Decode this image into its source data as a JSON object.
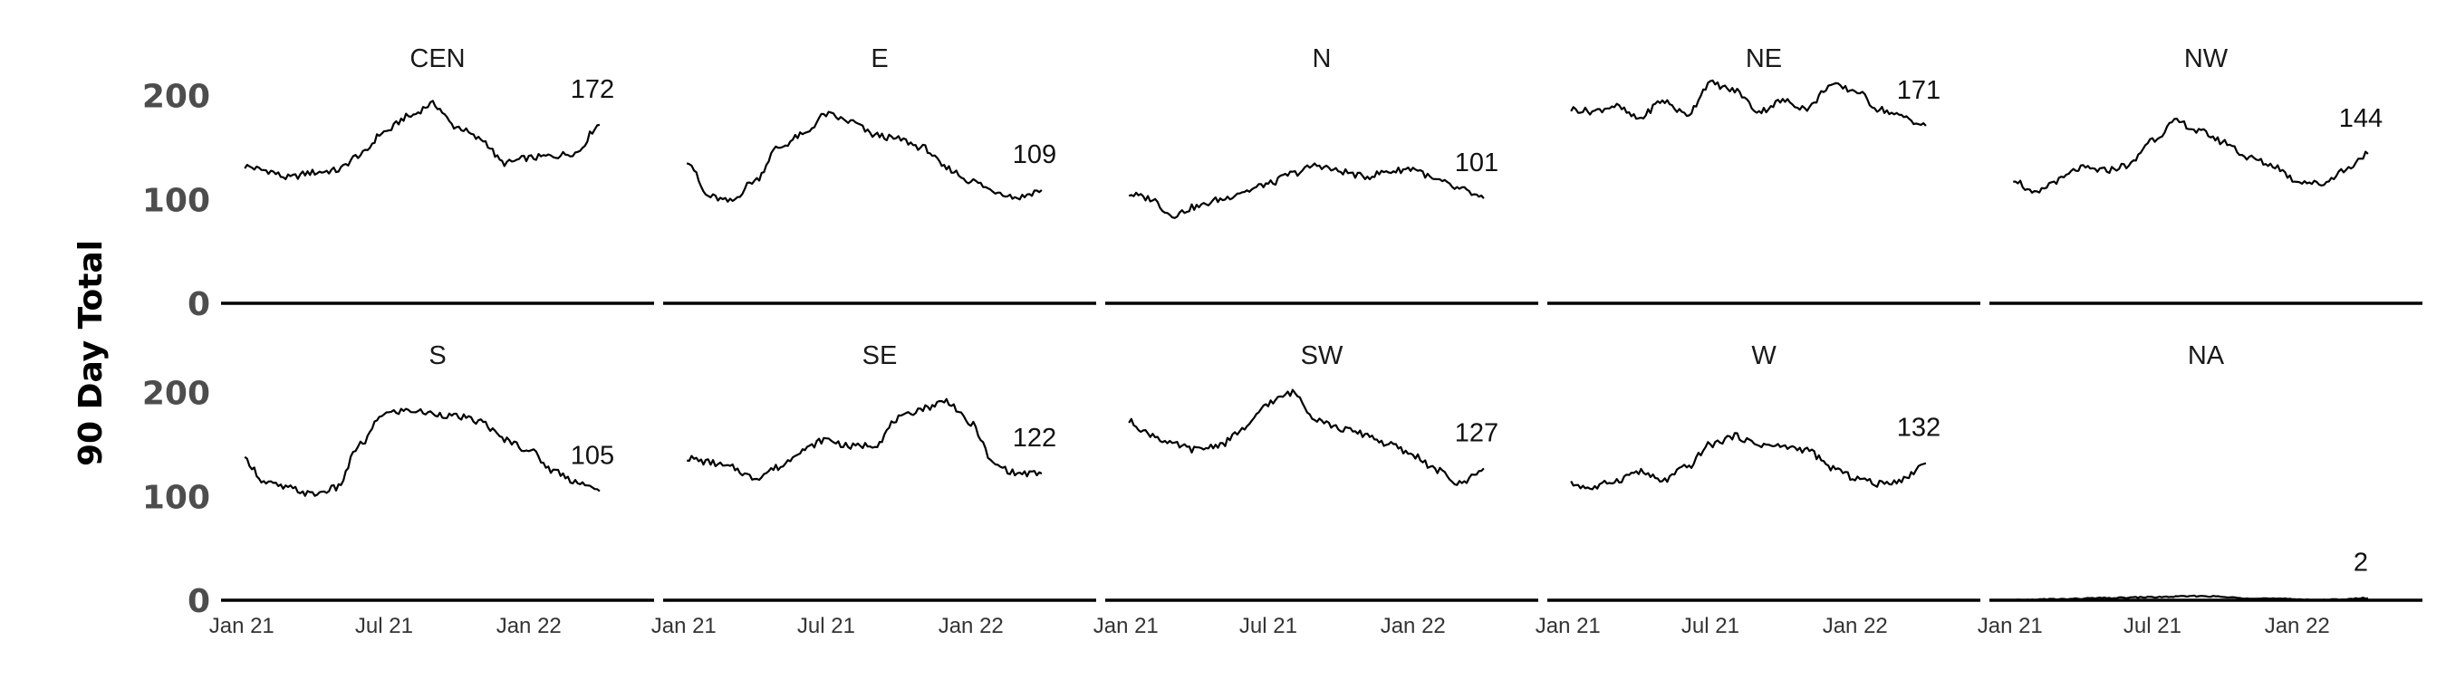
{
  "chart_data": {
    "type": "line",
    "ylabel": "90 Day Total",
    "ylim": [
      0,
      205
    ],
    "yticks": [
      "0",
      "100",
      "200"
    ],
    "y_tick_values": [
      0,
      100,
      200
    ],
    "xticks": [
      "Jan 21",
      "Jul 21",
      "Jan 22"
    ],
    "x_tick_dates": [
      "2021-01-01",
      "2021-07-01",
      "2022-01-01"
    ],
    "xlim": [
      "2020-12-15",
      "2022-05-31"
    ],
    "line_color": "#000000",
    "grid": false,
    "layout": "facet grid, 2 rows x 5 columns",
    "panels": [
      {
        "title": "CEN",
        "end_label": "172",
        "points": [
          [
            "2021-01-05",
            132
          ],
          [
            "2021-02-01",
            128
          ],
          [
            "2021-03-01",
            121
          ],
          [
            "2021-04-01",
            126
          ],
          [
            "2021-05-01",
            128
          ],
          [
            "2021-06-01",
            143
          ],
          [
            "2021-07-01",
            165
          ],
          [
            "2021-08-01",
            180
          ],
          [
            "2021-09-01",
            192
          ],
          [
            "2021-10-01",
            170
          ],
          [
            "2021-11-01",
            158
          ],
          [
            "2021-12-01",
            135
          ],
          [
            "2022-01-01",
            140
          ],
          [
            "2022-02-01",
            142
          ],
          [
            "2022-03-01",
            145
          ],
          [
            "2022-04-01",
            172
          ]
        ]
      },
      {
        "title": "E",
        "end_label": "109",
        "points": [
          [
            "2021-01-05",
            138
          ],
          [
            "2021-02-01",
            103
          ],
          [
            "2021-03-01",
            98
          ],
          [
            "2021-04-01",
            118
          ],
          [
            "2021-05-01",
            150
          ],
          [
            "2021-06-01",
            162
          ],
          [
            "2021-07-01",
            182
          ],
          [
            "2021-08-01",
            175
          ],
          [
            "2021-09-01",
            162
          ],
          [
            "2021-10-01",
            158
          ],
          [
            "2021-11-01",
            150
          ],
          [
            "2021-12-01",
            130
          ],
          [
            "2022-01-01",
            118
          ],
          [
            "2022-02-01",
            108
          ],
          [
            "2022-03-01",
            102
          ],
          [
            "2022-04-01",
            109
          ]
        ]
      },
      {
        "title": "N",
        "end_label": "101",
        "points": [
          [
            "2021-01-05",
            105
          ],
          [
            "2021-02-01",
            101
          ],
          [
            "2021-03-01",
            85
          ],
          [
            "2021-04-01",
            93
          ],
          [
            "2021-05-01",
            100
          ],
          [
            "2021-06-01",
            108
          ],
          [
            "2021-07-01",
            115
          ],
          [
            "2021-08-01",
            125
          ],
          [
            "2021-09-01",
            133
          ],
          [
            "2021-10-01",
            127
          ],
          [
            "2021-11-01",
            122
          ],
          [
            "2021-12-01",
            127
          ],
          [
            "2022-01-01",
            130
          ],
          [
            "2022-02-01",
            118
          ],
          [
            "2022-03-01",
            110
          ],
          [
            "2022-04-01",
            101
          ]
        ]
      },
      {
        "title": "NE",
        "end_label": "171",
        "points": [
          [
            "2021-01-05",
            187
          ],
          [
            "2021-02-01",
            185
          ],
          [
            "2021-03-01",
            190
          ],
          [
            "2021-04-01",
            178
          ],
          [
            "2021-05-01",
            195
          ],
          [
            "2021-06-01",
            182
          ],
          [
            "2021-07-01",
            212
          ],
          [
            "2021-08-01",
            205
          ],
          [
            "2021-09-01",
            185
          ],
          [
            "2021-10-01",
            195
          ],
          [
            "2021-11-01",
            188
          ],
          [
            "2021-12-01",
            210
          ],
          [
            "2022-01-01",
            205
          ],
          [
            "2022-02-01",
            187
          ],
          [
            "2022-03-01",
            180
          ],
          [
            "2022-04-01",
            171
          ]
        ]
      },
      {
        "title": "NW",
        "end_label": "144",
        "points": [
          [
            "2021-01-05",
            120
          ],
          [
            "2021-02-01",
            105
          ],
          [
            "2021-03-01",
            118
          ],
          [
            "2021-04-01",
            130
          ],
          [
            "2021-05-01",
            128
          ],
          [
            "2021-06-01",
            133
          ],
          [
            "2021-07-01",
            158
          ],
          [
            "2021-08-01",
            175
          ],
          [
            "2021-09-01",
            165
          ],
          [
            "2021-10-01",
            155
          ],
          [
            "2021-11-01",
            140
          ],
          [
            "2021-12-01",
            133
          ],
          [
            "2022-01-01",
            118
          ],
          [
            "2022-02-01",
            115
          ],
          [
            "2022-03-01",
            128
          ],
          [
            "2022-04-01",
            144
          ]
        ]
      },
      {
        "title": "S",
        "end_label": "105",
        "points": [
          [
            "2021-01-05",
            135
          ],
          [
            "2021-02-01",
            113
          ],
          [
            "2021-03-01",
            108
          ],
          [
            "2021-04-01",
            102
          ],
          [
            "2021-05-01",
            108
          ],
          [
            "2021-06-01",
            150
          ],
          [
            "2021-07-01",
            180
          ],
          [
            "2021-08-01",
            183
          ],
          [
            "2021-09-01",
            180
          ],
          [
            "2021-10-01",
            177
          ],
          [
            "2021-11-01",
            172
          ],
          [
            "2021-12-01",
            155
          ],
          [
            "2022-01-01",
            145
          ],
          [
            "2022-02-01",
            125
          ],
          [
            "2022-03-01",
            115
          ],
          [
            "2022-04-01",
            105
          ]
        ]
      },
      {
        "title": "SE",
        "end_label": "122",
        "points": [
          [
            "2021-01-05",
            137
          ],
          [
            "2021-02-01",
            133
          ],
          [
            "2021-03-01",
            128
          ],
          [
            "2021-04-01",
            118
          ],
          [
            "2021-05-01",
            128
          ],
          [
            "2021-06-01",
            145
          ],
          [
            "2021-07-01",
            155
          ],
          [
            "2021-08-01",
            148
          ],
          [
            "2021-09-01",
            150
          ],
          [
            "2021-10-01",
            175
          ],
          [
            "2021-11-01",
            185
          ],
          [
            "2021-12-01",
            192
          ],
          [
            "2022-01-01",
            170
          ],
          [
            "2022-02-01",
            130
          ],
          [
            "2022-03-01",
            122
          ],
          [
            "2022-04-01",
            122
          ]
        ]
      },
      {
        "title": "SW",
        "end_label": "127",
        "points": [
          [
            "2021-01-05",
            172
          ],
          [
            "2021-02-01",
            160
          ],
          [
            "2021-03-01",
            150
          ],
          [
            "2021-04-01",
            145
          ],
          [
            "2021-05-01",
            150
          ],
          [
            "2021-06-01",
            165
          ],
          [
            "2021-07-01",
            190
          ],
          [
            "2021-08-01",
            200
          ],
          [
            "2021-09-01",
            175
          ],
          [
            "2021-10-01",
            165
          ],
          [
            "2021-11-01",
            160
          ],
          [
            "2021-12-01",
            150
          ],
          [
            "2022-01-01",
            140
          ],
          [
            "2022-02-01",
            125
          ],
          [
            "2022-03-01",
            112
          ],
          [
            "2022-04-01",
            127
          ]
        ]
      },
      {
        "title": "W",
        "end_label": "132",
        "points": [
          [
            "2021-01-05",
            112
          ],
          [
            "2021-02-01",
            108
          ],
          [
            "2021-03-01",
            115
          ],
          [
            "2021-04-01",
            124
          ],
          [
            "2021-05-01",
            115
          ],
          [
            "2021-06-01",
            128
          ],
          [
            "2021-07-01",
            150
          ],
          [
            "2021-08-01",
            158
          ],
          [
            "2021-09-01",
            150
          ],
          [
            "2021-10-01",
            148
          ],
          [
            "2021-11-01",
            145
          ],
          [
            "2021-12-01",
            128
          ],
          [
            "2022-01-01",
            118
          ],
          [
            "2022-02-01",
            112
          ],
          [
            "2022-03-01",
            116
          ],
          [
            "2022-04-01",
            132
          ]
        ]
      },
      {
        "title": "NA",
        "end_label": "2",
        "points": [
          [
            "2021-01-05",
            0
          ],
          [
            "2021-03-01",
            1
          ],
          [
            "2021-05-01",
            2
          ],
          [
            "2021-07-01",
            3
          ],
          [
            "2021-09-01",
            4
          ],
          [
            "2021-11-01",
            2
          ],
          [
            "2022-01-01",
            1
          ],
          [
            "2022-02-01",
            0
          ],
          [
            "2022-03-01",
            1
          ],
          [
            "2022-04-01",
            2
          ]
        ]
      }
    ]
  }
}
